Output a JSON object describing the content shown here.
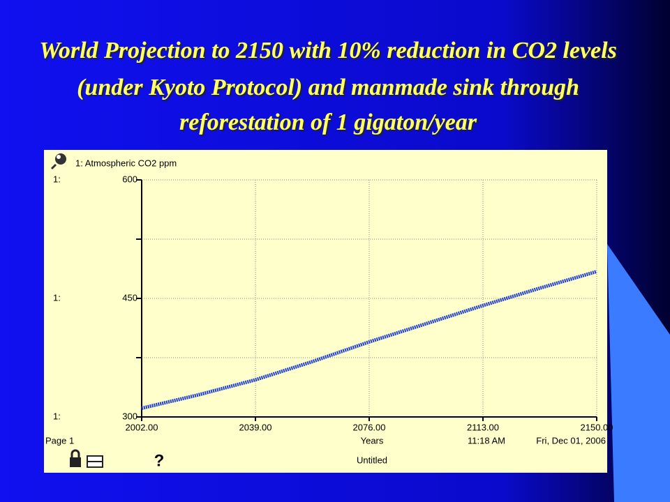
{
  "chart_data": {
    "type": "line",
    "title_lines": [
      "World Projection to 2150 with 10% reduction in CO2 levels",
      "(under Kyoto Protocol) and manmade sink through",
      "reforestation of 1 gigaton/year"
    ],
    "x_label": "Years",
    "axis_prefix": "1:",
    "footer": {
      "page": "Page 1",
      "time": "11:18 AM",
      "date": "Fri, Dec 01, 2006",
      "file": "Untitled"
    },
    "x": [
      2002,
      2020.5,
      2039,
      2057.5,
      2076,
      2094.5,
      2113,
      2131.5,
      2150
    ],
    "series": [
      {
        "name": "1: Atmospheric CO2 ppm",
        "color": "#1f3fd6",
        "values": [
          311,
          328,
          347,
          370,
          395,
          418,
          441,
          463,
          484
        ]
      }
    ],
    "xlim": [
      2002,
      2150
    ],
    "xticks": [
      {
        "value": 2002,
        "label": "2002.00"
      },
      {
        "value": 2039,
        "label": "2039.00"
      },
      {
        "value": 2076,
        "label": "2076.00"
      },
      {
        "value": 2113,
        "label": "2113.00"
      },
      {
        "value": 2150,
        "label": "2150.00"
      }
    ],
    "ylim": [
      300,
      600
    ],
    "yticks": [
      300,
      450,
      600
    ],
    "yminor": [
      375,
      525
    ],
    "grid": true
  }
}
